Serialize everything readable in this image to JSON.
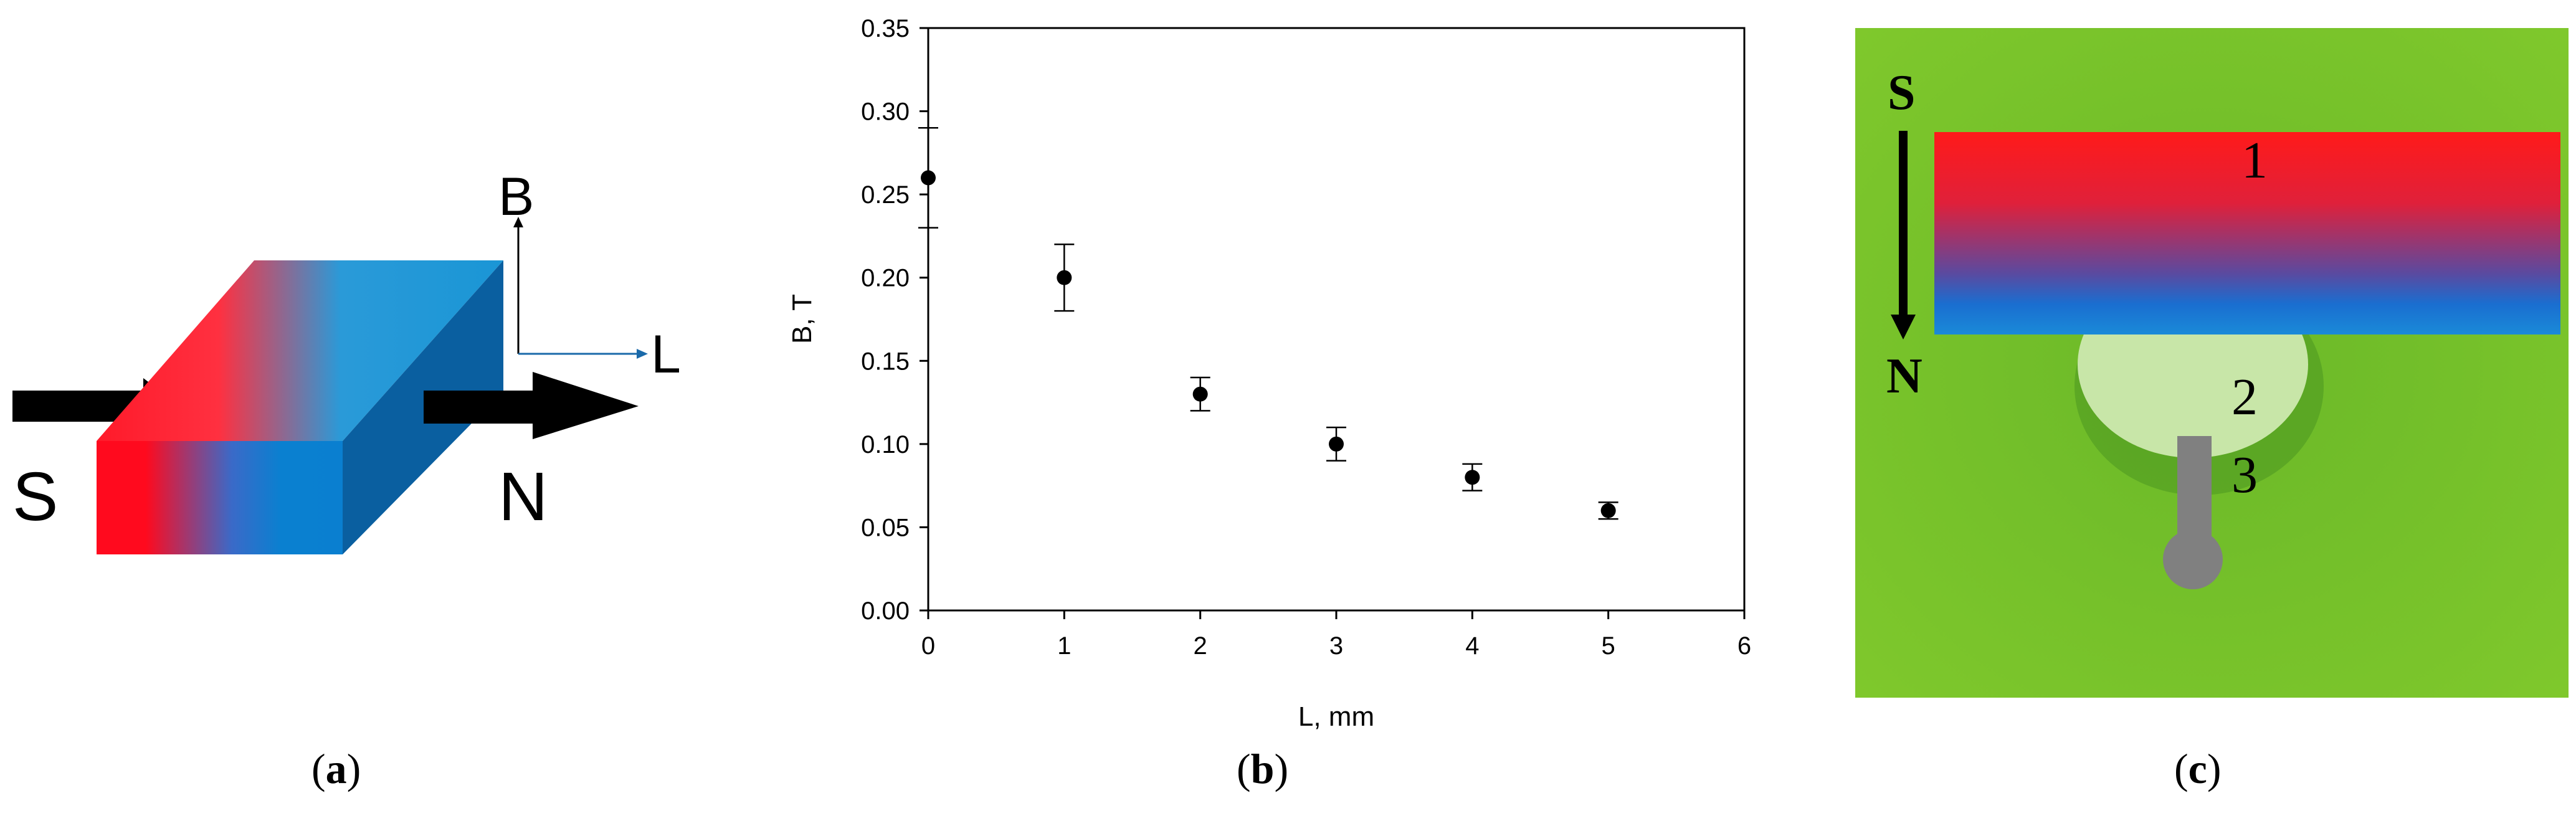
{
  "panel_a": {
    "caption_open": "(",
    "caption_letter": "a",
    "caption_close": ")",
    "label_s": "S",
    "label_n": "N",
    "axis_b": "B",
    "axis_l": "L",
    "colors": {
      "red": "#ff0a1e",
      "blue": "#0a7fd0",
      "top_blue": "#1a96d6",
      "side_blue": "#0a5a9a"
    }
  },
  "panel_b": {
    "caption_open": "(",
    "caption_letter": "b",
    "caption_close": ")"
  },
  "panel_c": {
    "caption_open": "(",
    "caption_letter": "c",
    "caption_close": ")",
    "label_s": "S",
    "label_n": "N",
    "label_1": "1",
    "label_2": "2",
    "label_3": "3",
    "colors": {
      "background": "#7dc62a",
      "magnet_red": "#ff1a1a",
      "magnet_blue": "#1a7fd4",
      "droplet": "#c8e6a8",
      "probe": "#808080"
    }
  },
  "chart_data": {
    "type": "scatter",
    "title": "",
    "xlabel": "L, mm",
    "ylabel": "B, T",
    "xlim": [
      0,
      6
    ],
    "ylim": [
      0,
      0.35
    ],
    "xticks": [
      "0",
      "1",
      "2",
      "3",
      "4",
      "5",
      "6"
    ],
    "yticks": [
      "0.00",
      "0.05",
      "0.10",
      "0.15",
      "0.20",
      "0.25",
      "0.30",
      "0.35"
    ],
    "x": [
      0,
      1,
      2,
      3,
      4,
      5
    ],
    "y": [
      0.26,
      0.2,
      0.13,
      0.1,
      0.08,
      0.06
    ],
    "error": [
      0.03,
      0.02,
      0.01,
      0.01,
      0.008,
      0.005
    ],
    "grid": false,
    "marker_color": "#000000"
  }
}
